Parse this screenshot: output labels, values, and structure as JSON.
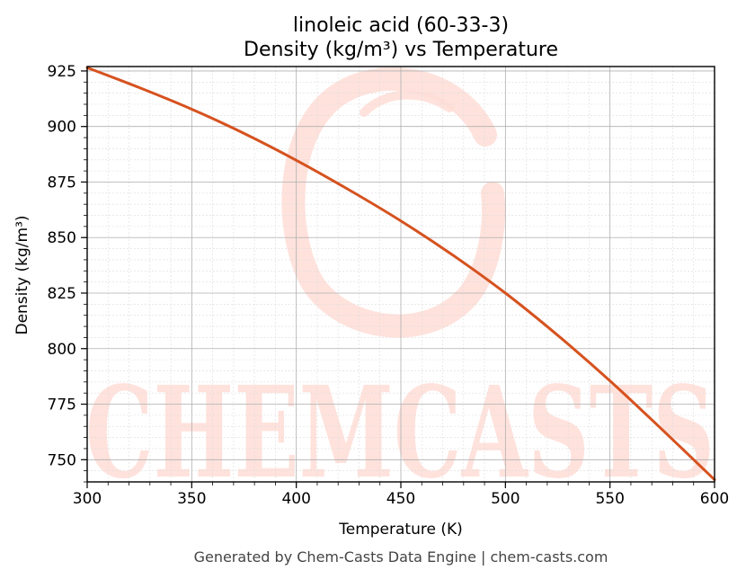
{
  "chart_data": {
    "type": "line",
    "title": "linoleic acid (60-33-3)",
    "subtitle": "Density (kg/m³) vs Temperature",
    "xlabel": "Temperature (K)",
    "ylabel": "Density (kg/m³)",
    "xlim": [
      300,
      600
    ],
    "ylim": [
      740,
      927
    ],
    "xticks": [
      300,
      350,
      400,
      450,
      500,
      550,
      600
    ],
    "yticks": [
      750,
      775,
      800,
      825,
      850,
      875,
      900,
      925
    ],
    "grid": true,
    "series": [
      {
        "color": "#d6521f",
        "x": [
          300,
          325,
          350,
          375,
          400,
          425,
          450,
          475,
          500,
          525,
          550,
          575,
          600
        ],
        "y": [
          926.5,
          917.5,
          907.8,
          896.9,
          884.8,
          871.6,
          857.5,
          842.0,
          825.0,
          806.0,
          785.5,
          763.5,
          741.0
        ]
      }
    ]
  },
  "watermark": {
    "text": "CHEMCASTS",
    "color": "#ffddd6"
  },
  "footer": {
    "text": "Generated by Chem-Casts Data Engine | chem-casts.com"
  }
}
